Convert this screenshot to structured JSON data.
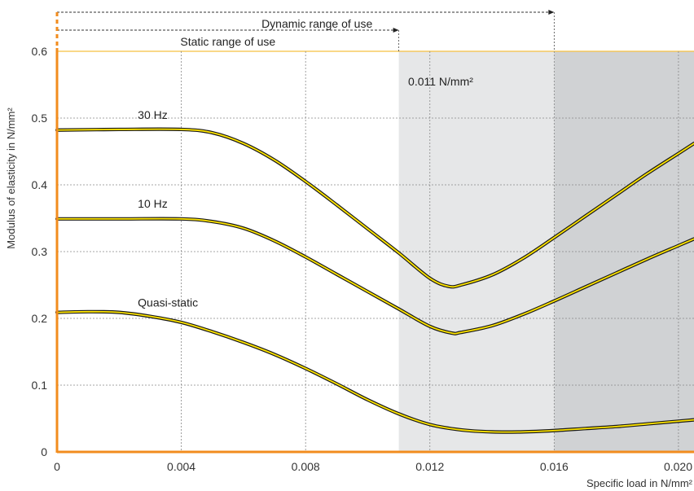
{
  "chart_data": {
    "type": "line",
    "xlabel": "Specific load in N/mm²",
    "ylabel": "Modulus of elasticity in N/mm²",
    "xlim": [
      0,
      0.0205
    ],
    "ylim": [
      0,
      0.6
    ],
    "x_ticks": [
      0,
      0.004,
      0.008,
      0.012,
      0.016,
      0.02
    ],
    "x_tick_labels": [
      "0",
      "0.004",
      "0.008",
      "0.012",
      "0.016",
      "0.020"
    ],
    "y_ticks": [
      0,
      0.1,
      0.2,
      0.3,
      0.4,
      0.5,
      0.6
    ],
    "y_tick_labels": [
      "0",
      "0.1",
      "0.2",
      "0.3",
      "0.4",
      "0.5",
      "0.6"
    ],
    "grid": true,
    "series": [
      {
        "name": "30 Hz",
        "x": [
          0,
          0.002,
          0.004,
          0.005,
          0.006,
          0.007,
          0.008,
          0.009,
          0.01,
          0.011,
          0.012,
          0.0126,
          0.013,
          0.014,
          0.015,
          0.016,
          0.017,
          0.018,
          0.019,
          0.02,
          0.0205
        ],
        "y": [
          0.482,
          0.483,
          0.483,
          0.478,
          0.462,
          0.437,
          0.405,
          0.37,
          0.334,
          0.298,
          0.26,
          0.248,
          0.25,
          0.265,
          0.29,
          0.321,
          0.353,
          0.385,
          0.417,
          0.447,
          0.462
        ]
      },
      {
        "name": "10 Hz",
        "x": [
          0,
          0.002,
          0.004,
          0.005,
          0.006,
          0.007,
          0.008,
          0.009,
          0.01,
          0.011,
          0.012,
          0.0127,
          0.013,
          0.014,
          0.015,
          0.016,
          0.017,
          0.018,
          0.019,
          0.02,
          0.0205
        ],
        "y": [
          0.349,
          0.349,
          0.349,
          0.345,
          0.335,
          0.316,
          0.292,
          0.266,
          0.24,
          0.214,
          0.188,
          0.178,
          0.179,
          0.189,
          0.206,
          0.226,
          0.247,
          0.268,
          0.289,
          0.309,
          0.319
        ]
      },
      {
        "name": "Quasi-static",
        "x": [
          0,
          0.001,
          0.002,
          0.003,
          0.004,
          0.005,
          0.006,
          0.007,
          0.008,
          0.009,
          0.01,
          0.011,
          0.012,
          0.013,
          0.014,
          0.015,
          0.016,
          0.017,
          0.018,
          0.019,
          0.02,
          0.0205
        ],
        "y": [
          0.209,
          0.21,
          0.209,
          0.203,
          0.194,
          0.18,
          0.164,
          0.146,
          0.125,
          0.102,
          0.078,
          0.057,
          0.041,
          0.033,
          0.03,
          0.03,
          0.032,
          0.035,
          0.038,
          0.042,
          0.046,
          0.048
        ]
      }
    ],
    "regions": [
      {
        "x_from": 0.011,
        "x_to": 0.016,
        "color": "#e6e7e8"
      },
      {
        "x_from": 0.016,
        "x_to": 0.0205,
        "color": "#d0d2d4"
      }
    ],
    "annotations": [
      {
        "text": "0.011 N/mm²",
        "x": 0.0113,
        "y": 0.555
      },
      {
        "text": "30 Hz",
        "x": 0.0026,
        "y": 0.505
      },
      {
        "text": "10 Hz",
        "x": 0.0026,
        "y": 0.372
      },
      {
        "text": "Quasi-static",
        "x": 0.0026,
        "y": 0.224
      }
    ],
    "ranges": [
      {
        "label": "Dynamic range of use",
        "x_to": 0.016
      },
      {
        "label": "Static range of use",
        "x_to": 0.011
      }
    ],
    "colors": {
      "axis": "#f28c1e",
      "line": "#ffe500",
      "line_outline": "#1a1a1a",
      "grid": "#888888",
      "top_line": "#f5c040"
    }
  }
}
